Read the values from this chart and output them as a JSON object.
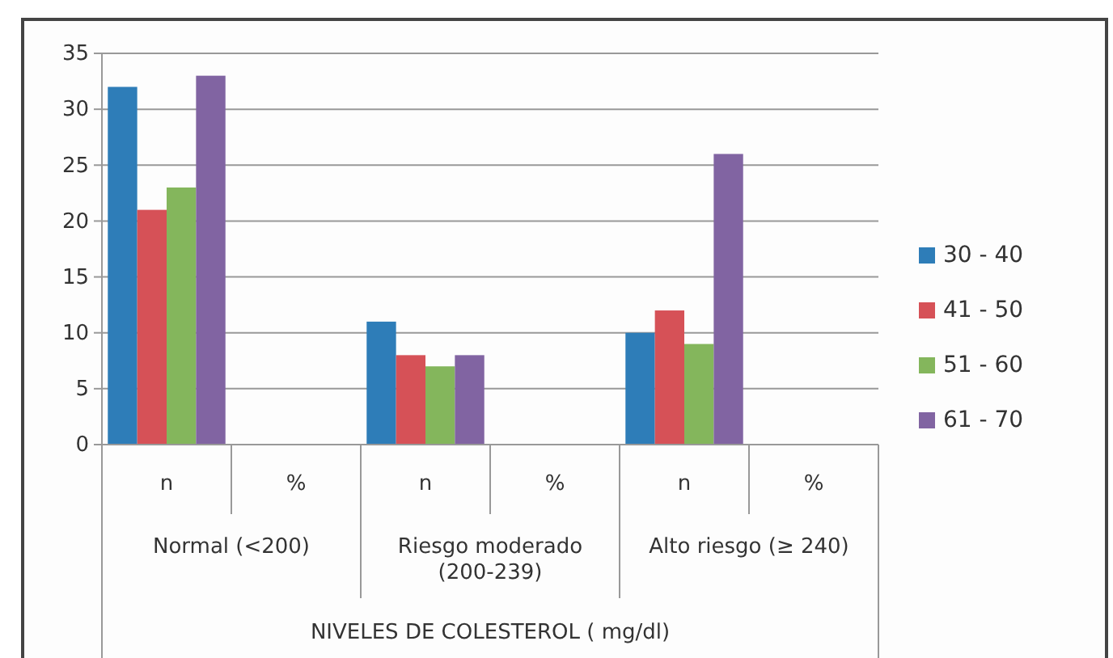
{
  "chart_data": {
    "type": "bar",
    "categories": [
      "n",
      "%",
      "n",
      "%",
      "n",
      "%"
    ],
    "series": [
      {
        "name": "30 - 40",
        "color": "#2e7db8",
        "values": [
          32,
          null,
          11,
          null,
          10,
          null
        ]
      },
      {
        "name": "41 - 50",
        "color": "#d65157",
        "values": [
          21,
          null,
          8,
          null,
          12,
          null
        ]
      },
      {
        "name": "51 - 60",
        "color": "#84b65c",
        "values": [
          23,
          null,
          7,
          null,
          9,
          null
        ]
      },
      {
        "name": "61 - 70",
        "color": "#8164a2",
        "values": [
          33,
          null,
          8,
          null,
          26,
          null
        ]
      }
    ],
    "annotations": [
      "Normal (<200)",
      "Riesgo moderado (200-239)",
      "Alto riesgo (≥ 240)",
      "NIVELES DE COLESTEROL ( mg/dl)"
    ],
    "ylim": [
      0,
      35
    ],
    "yticks": [
      0,
      5,
      10,
      15,
      20,
      25,
      30,
      35
    ],
    "grid": "y",
    "legend": "right"
  }
}
